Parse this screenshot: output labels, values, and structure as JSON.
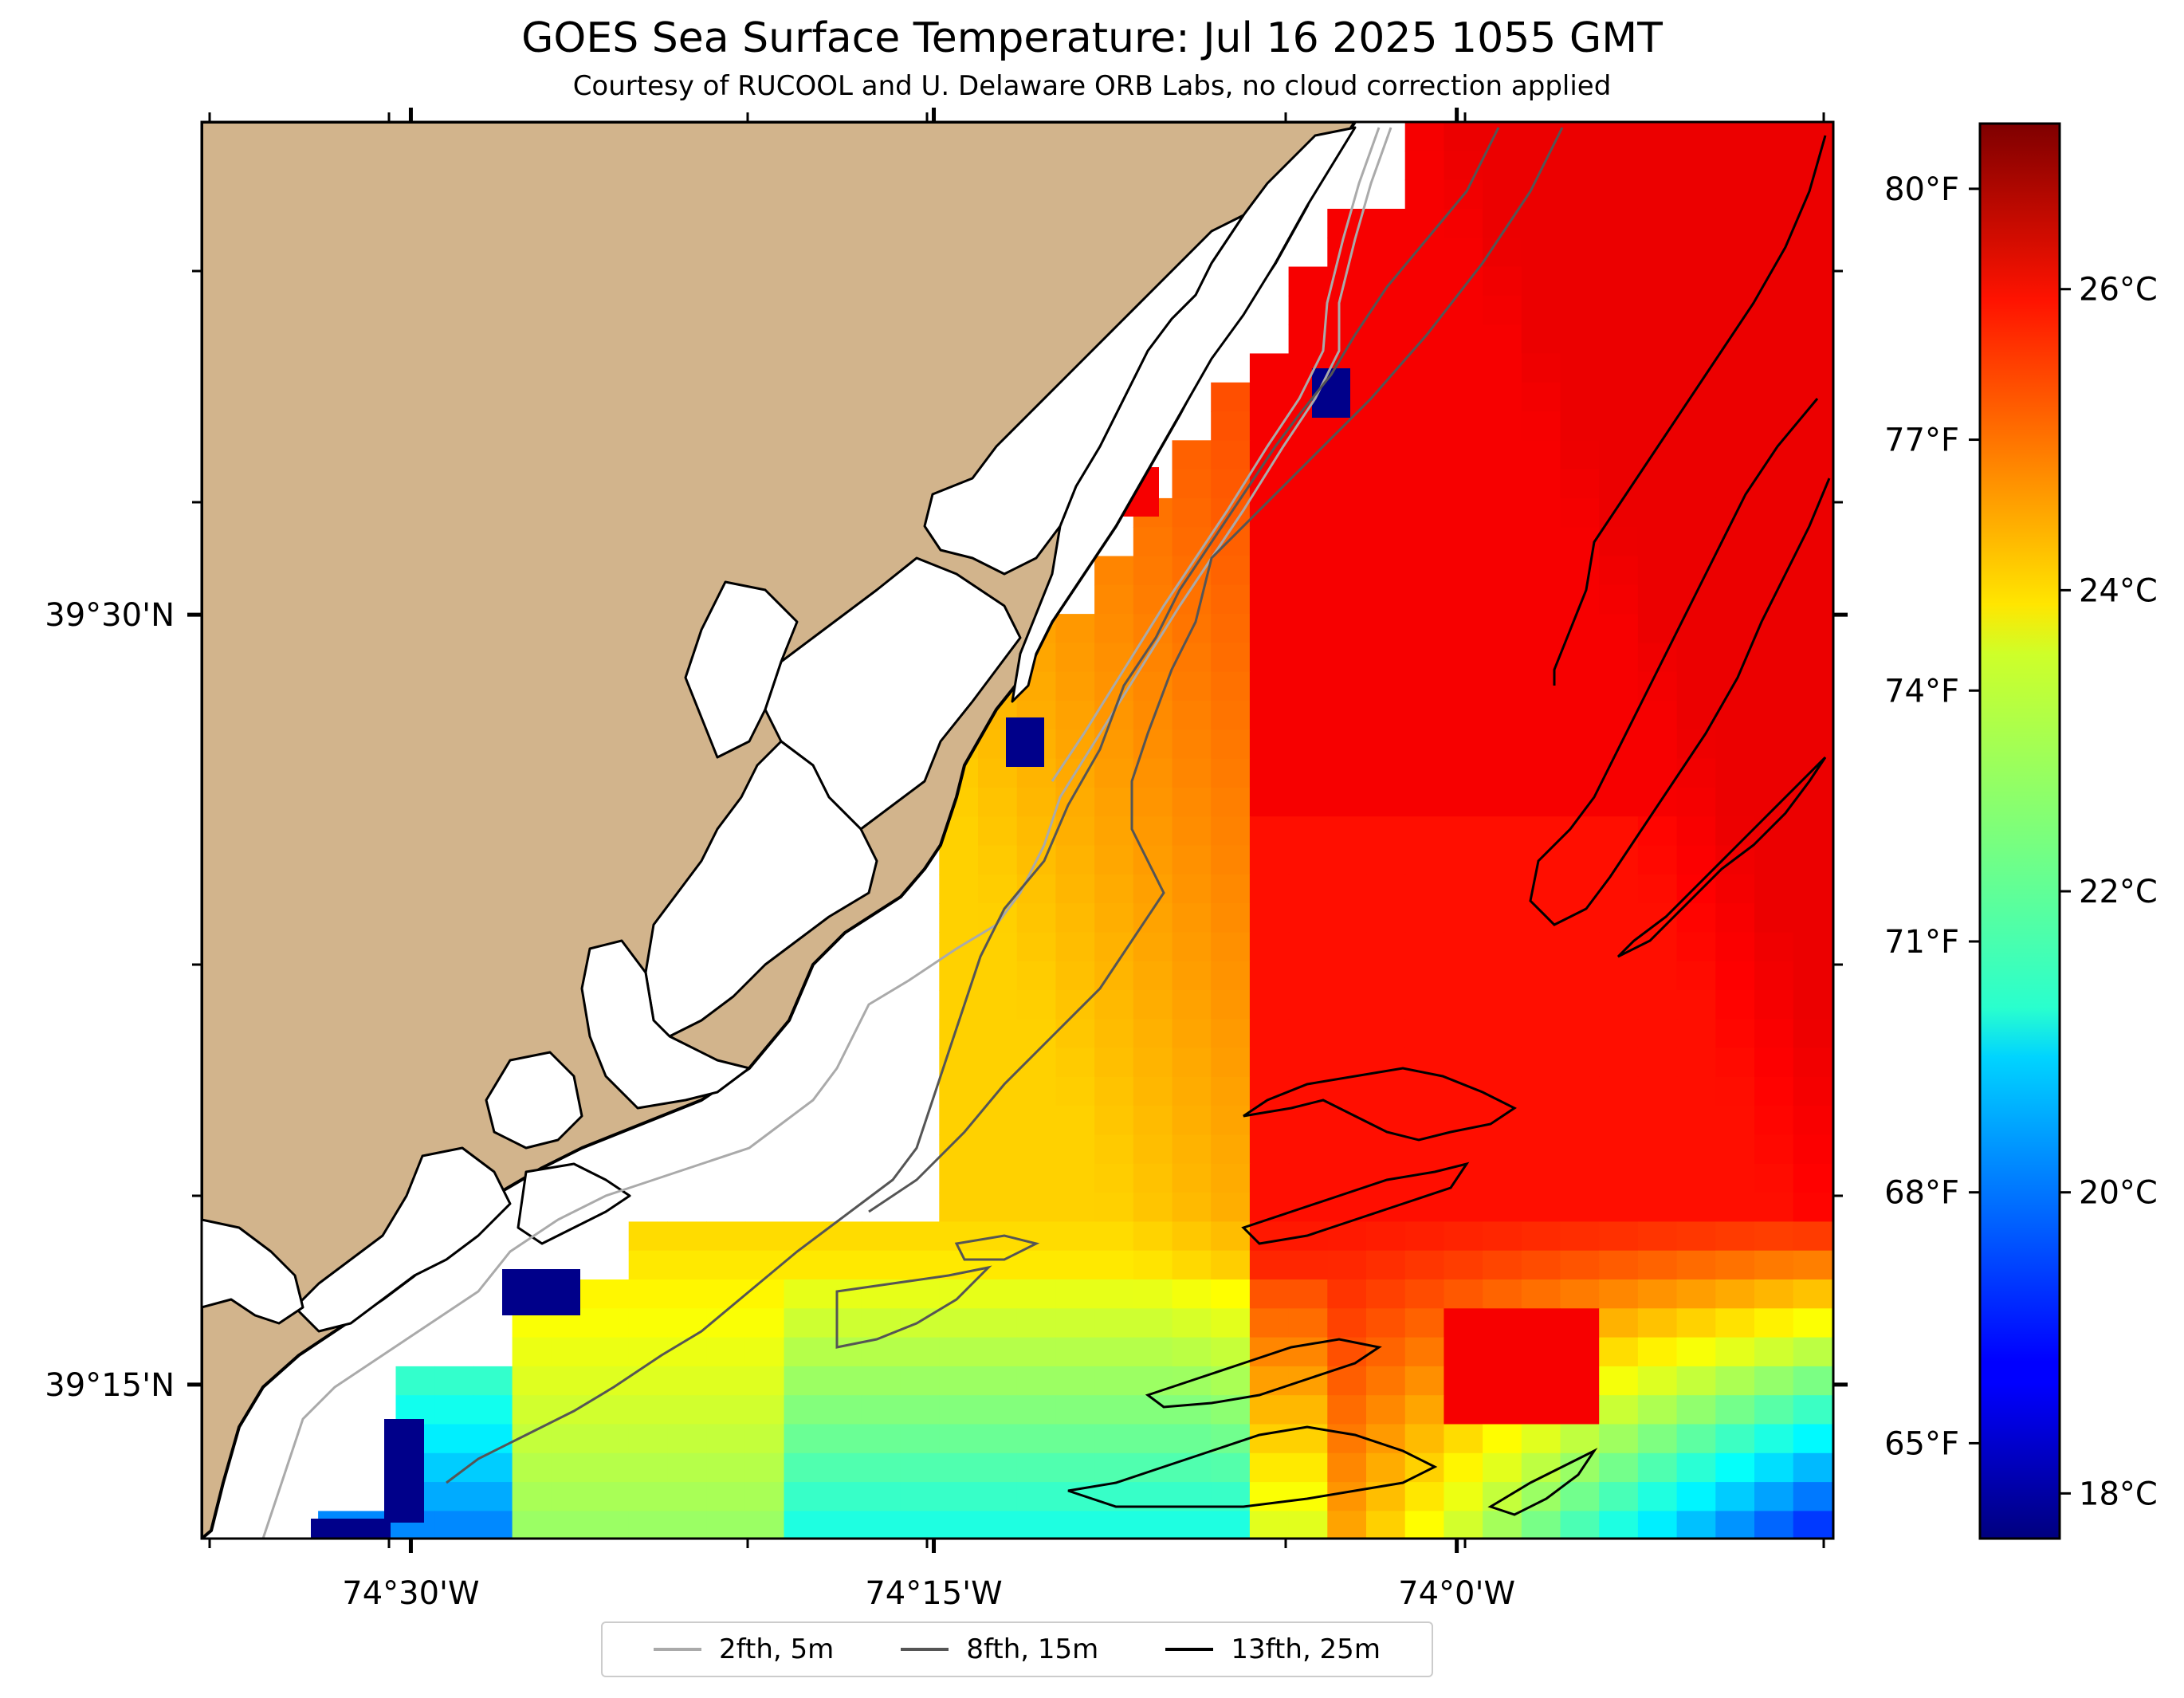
{
  "chart_data": {
    "type": "heatmap",
    "title": "GOES Sea Surface Temperature: Jul 16 2025 1055 GMT",
    "subtitle": "Courtesy of RUCOOL and U. Delaware ORB Labs, no cloud correction applied",
    "x_axis": {
      "label": "",
      "range": [
        -74.6,
        -73.82
      ],
      "ticks": [
        -74.5,
        -74.25,
        -74.0
      ],
      "tick_labels": [
        "74°30'W",
        "74°15'W",
        "74°0'W"
      ]
    },
    "y_axis": {
      "label": "",
      "range": [
        39.2,
        39.66
      ],
      "ticks": [
        39.25,
        39.5
      ],
      "tick_labels": [
        "39°15'N",
        "39°30'N"
      ]
    },
    "colorbar": {
      "colormap": "jet",
      "range_c": [
        17.7,
        27.1
      ],
      "celsius_ticks": [
        18,
        20,
        22,
        24,
        26
      ],
      "celsius_labels": [
        "18°C",
        "20°C",
        "22°C",
        "24°C",
        "26°C"
      ],
      "fahrenheit_ticks": [
        65,
        68,
        71,
        74,
        77,
        80
      ],
      "fahrenheit_labels": [
        "65°F",
        "68°F",
        "71°F",
        "74°F",
        "77°F",
        "80°F"
      ]
    },
    "temperature_field_c": {
      "description_of_values": "approximate SST in °C read from colour",
      "offshore_northeast": 26.0,
      "central_shelf": 25.3,
      "nearshore_north": 24.0,
      "nearshore_central": 24.6,
      "southern_band": 23.5,
      "southern_cold_edge": 19.5,
      "back_bay_warm": 27.0,
      "inlet_cold_pixels": 17.8
    },
    "land_color": "#D2B48C",
    "legend": {
      "placement": "bottom-center",
      "items": [
        {
          "label": "2fth, 5m",
          "color": "#aaaaaa"
        },
        {
          "label": "8fth, 15m",
          "color": "#555555"
        },
        {
          "label": "13fth, 25m",
          "color": "#000000"
        }
      ]
    }
  }
}
